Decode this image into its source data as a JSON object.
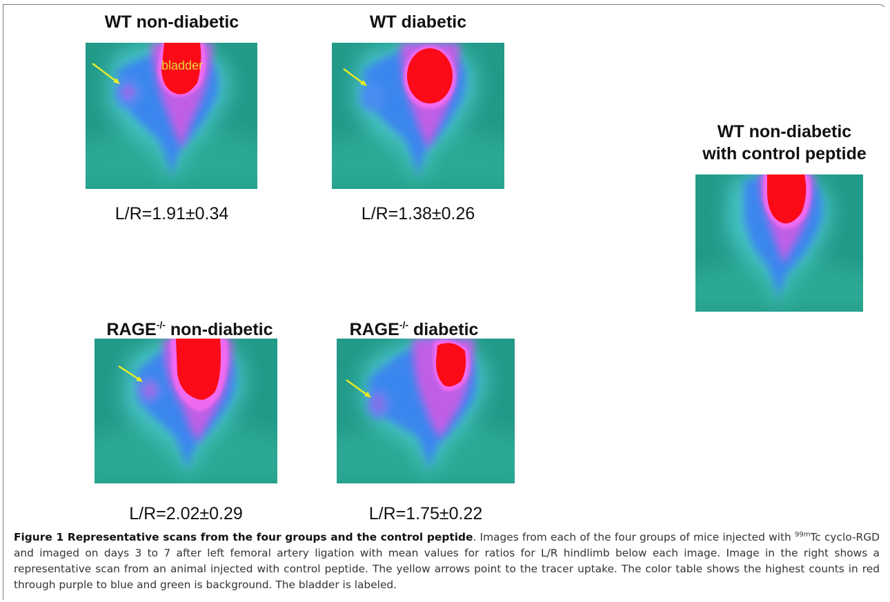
{
  "panels": [
    {
      "title": "WT non-diabetic",
      "ratio": "L/R=1.91±0.34",
      "label": "bladder"
    },
    {
      "title": "WT diabetic",
      "ratio": "L/R=1.38±0.26"
    },
    {
      "title_line1": "WT non-diabetic",
      "title_line2": "with control peptide"
    },
    {
      "title_main": "RAGE",
      "title_sup": "-/-",
      "title_rest": " non-diabetic",
      "ratio": "L/R=2.02±0.29"
    },
    {
      "title_main": "RAGE",
      "title_sup": "-/-",
      "title_rest": " diabetic",
      "ratio": "L/R=1.75±0.22"
    }
  ],
  "caption": {
    "title": "Figure 1 Representative scans from the four groups and the control peptide",
    "text_a": ". Images from each of the four groups of mice injected with ",
    "isotope_sup": "99m",
    "text_b": "Tc cyclo-RGD and imaged on days 3 to 7 after left femoral artery ligation with mean values for ratios for L/R hindlimb below each image. Image in the right shows a representative scan from an animal injected with control peptide. The yellow arrows point to the tracer uptake. The color table shows the highest counts in red through purple to blue and green is background. The bladder is labeled."
  },
  "colors": {
    "background_green": "#229a88",
    "soft_green": "#5cc8b8",
    "cyan": "#2fb3d9",
    "blue": "#3a86ee",
    "purple": "#c05ee6",
    "magenta": "#f06af0",
    "red": "#fb0a17",
    "arrow_yellow": "#e6ec28",
    "label_yellow": "#e8d63a"
  }
}
